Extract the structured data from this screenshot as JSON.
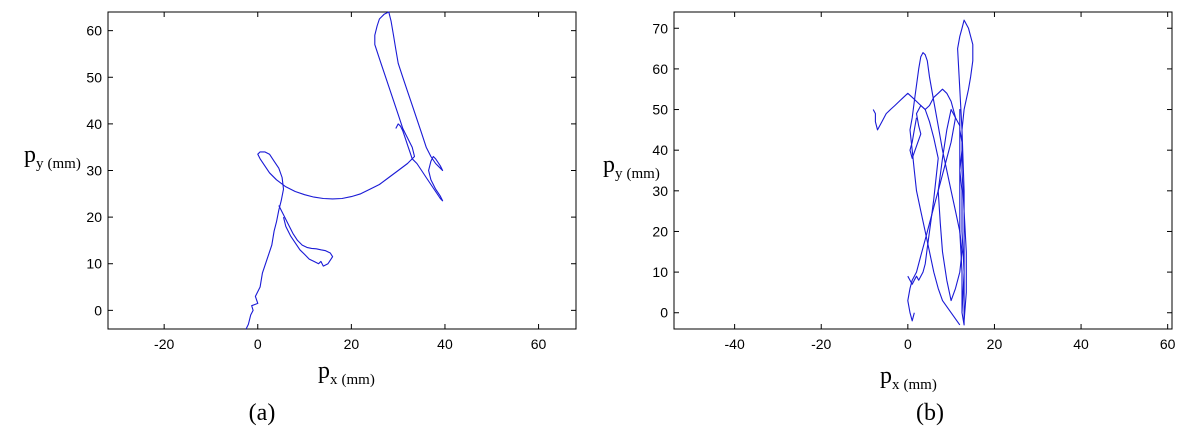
{
  "chart_data": [
    {
      "type": "line",
      "panel_label": "(a)",
      "xlabel": {
        "symbol": "p",
        "subscript": "x",
        "unit": "(mm)"
      },
      "ylabel": {
        "symbol": "p",
        "subscript": "y",
        "unit": "(mm)"
      },
      "xlim": [
        -32,
        68
      ],
      "ylim": [
        -4,
        64
      ],
      "xticks": [
        -20,
        0,
        20,
        40,
        60
      ],
      "yticks": [
        0,
        10,
        20,
        30,
        40,
        50,
        60
      ],
      "grid": false,
      "color": "#1a1ad6",
      "series": [
        {
          "x": [
            -2.5,
            -2,
            -1.5,
            -1,
            -1.3,
            0,
            -0.5,
            0.5,
            1,
            2,
            3,
            3.5,
            4,
            4.5,
            5,
            5.5,
            5.2,
            4.5,
            3.5,
            2.5,
            1.5,
            0.5,
            0,
            0.5,
            1.5,
            2.5,
            4,
            6,
            8,
            10,
            12,
            14,
            16,
            18,
            20,
            22,
            24,
            26,
            28,
            30,
            32,
            33.5,
            33,
            32,
            31,
            30,
            29,
            28,
            27,
            26,
            25,
            25,
            25.5,
            26,
            27,
            28,
            28.5,
            29,
            29.5,
            30,
            31,
            32,
            33,
            34,
            35,
            36,
            37,
            38,
            39,
            39.5,
            39,
            38,
            37.5,
            37,
            36.5,
            37,
            38,
            39,
            39.5,
            39,
            38,
            37,
            36,
            35,
            34,
            33,
            32.5,
            32,
            31.5,
            31,
            30.5,
            30,
            29.5
          ],
          "y": [
            -4,
            -3,
            -1,
            0,
            1,
            1.5,
            3,
            5,
            8,
            11,
            14,
            17,
            19,
            21.5,
            23.5,
            26,
            28.5,
            30.5,
            32,
            33.5,
            34,
            34,
            33.5,
            32.5,
            31,
            29.5,
            28,
            26.5,
            25.5,
            24.8,
            24.3,
            24,
            23.9,
            24,
            24.4,
            25,
            26,
            27,
            28.5,
            30,
            31.5,
            33,
            35,
            37,
            39,
            42,
            45,
            48,
            51,
            54,
            57,
            59,
            61,
            62.5,
            63.5,
            64,
            62,
            59,
            56,
            53,
            50,
            47,
            44,
            41,
            38,
            35,
            33,
            31.5,
            30.5,
            30,
            31,
            32.5,
            33,
            32,
            30,
            28,
            26,
            24.5,
            23.5,
            24,
            25.5,
            27,
            28.5,
            30,
            31.5,
            32.5,
            34,
            35.5,
            37,
            38.5,
            39.5,
            40,
            39
          ]
        },
        {
          "x": [
            4.5,
            5.5,
            6.5,
            7.5,
            8.5,
            9.5,
            10.5,
            11.5,
            12.5,
            13.5,
            14.5,
            15.5,
            16,
            15,
            14,
            13.5,
            13,
            12,
            11,
            10,
            9,
            8,
            7,
            6,
            5.5
          ],
          "y": [
            22.5,
            20.5,
            18.5,
            16.5,
            15,
            14,
            13.5,
            13.3,
            13.2,
            13,
            12.8,
            12.3,
            11.5,
            10,
            9.5,
            10.5,
            10,
            10.5,
            11,
            12,
            13,
            14.5,
            16,
            18,
            20
          ]
        }
      ]
    },
    {
      "type": "line",
      "panel_label": "(b)",
      "xlabel": {
        "symbol": "p",
        "subscript": "x",
        "unit": "(mm)"
      },
      "ylabel": {
        "symbol": "p",
        "subscript": "y",
        "unit": "(mm)"
      },
      "xlim": [
        -54,
        61
      ],
      "ylim": [
        -4,
        74
      ],
      "xticks": [
        -40,
        -20,
        0,
        20,
        40,
        60
      ],
      "yticks": [
        0,
        10,
        20,
        30,
        40,
        50,
        60,
        70
      ],
      "grid": false,
      "color": "#1a1ad6",
      "series": [
        {
          "x": [
            13,
            13.5,
            13.5,
            13,
            12.5,
            12.5,
            12,
            12,
            12,
            12,
            12,
            12.5,
            12.5,
            12.5,
            13,
            13,
            13,
            13,
            12.5,
            12,
            11.5,
            12,
            12.5,
            13,
            14,
            15,
            15,
            14.5,
            14,
            13,
            12.5,
            12.5,
            12,
            12.5,
            12.5,
            13,
            12.5,
            13
          ],
          "y": [
            -2,
            5,
            15,
            25,
            35,
            42,
            45,
            50,
            40,
            30,
            20,
            10,
            5,
            0,
            -3,
            5,
            15,
            30,
            45,
            55,
            65,
            68,
            70,
            72,
            70,
            66,
            62,
            58,
            55,
            50,
            45,
            40,
            35,
            30,
            20,
            10,
            0,
            -3
          ]
        },
        {
          "x": [
            12,
            10,
            8,
            7,
            6,
            5,
            4,
            3,
            2,
            1.5,
            1,
            0.5,
            1,
            1.5,
            2,
            2.5,
            3,
            3.5,
            4,
            4.5,
            5,
            6,
            7,
            8,
            9,
            10,
            11,
            12,
            12.5,
            12,
            11,
            10,
            9,
            8,
            7.5,
            7,
            8,
            9,
            10,
            11,
            12
          ],
          "y": [
            -3,
            0,
            3,
            6,
            10,
            15,
            20,
            25,
            30,
            35,
            40,
            45,
            48,
            52,
            56,
            60,
            63,
            64,
            63.5,
            62,
            58,
            52,
            46,
            40,
            35,
            30,
            25,
            20,
            15,
            10,
            6,
            3,
            8,
            15,
            22,
            30,
            38,
            45,
            50,
            48,
            46
          ]
        },
        {
          "x": [
            -8,
            -7.5,
            -7.5,
            -7,
            -6,
            -5,
            -4,
            -3,
            -2,
            -1,
            0,
            1,
            2,
            3,
            4,
            5,
            6,
            7,
            8,
            9,
            10,
            10.5,
            11,
            10.5,
            10,
            9,
            8,
            7,
            6,
            5,
            4,
            3,
            2,
            1,
            0.5,
            0,
            0.5,
            1,
            1.5
          ],
          "y": [
            50,
            49,
            47,
            45,
            47,
            49,
            50,
            51,
            52,
            53,
            54,
            53,
            52,
            51,
            50,
            51,
            53,
            54,
            55,
            54,
            52,
            50,
            48,
            45,
            42,
            38,
            34,
            30,
            26,
            22,
            18,
            14,
            10,
            8,
            6,
            3,
            0,
            -2,
            0
          ]
        },
        {
          "x": [
            2,
            1.5,
            1,
            0.5,
            1,
            2,
            3,
            2.5,
            2,
            3,
            4,
            5,
            6,
            7,
            6.5,
            6,
            5.5,
            5,
            4.5,
            4,
            3.5,
            3,
            2.5,
            2,
            1.5,
            1,
            0.5,
            0
          ],
          "y": [
            48,
            45,
            42,
            40,
            38,
            41,
            44,
            46,
            49,
            51,
            50,
            47,
            43,
            38,
            33,
            28,
            24,
            20,
            16,
            12,
            10,
            9,
            8,
            9,
            8,
            7,
            8,
            9
          ]
        }
      ]
    }
  ]
}
